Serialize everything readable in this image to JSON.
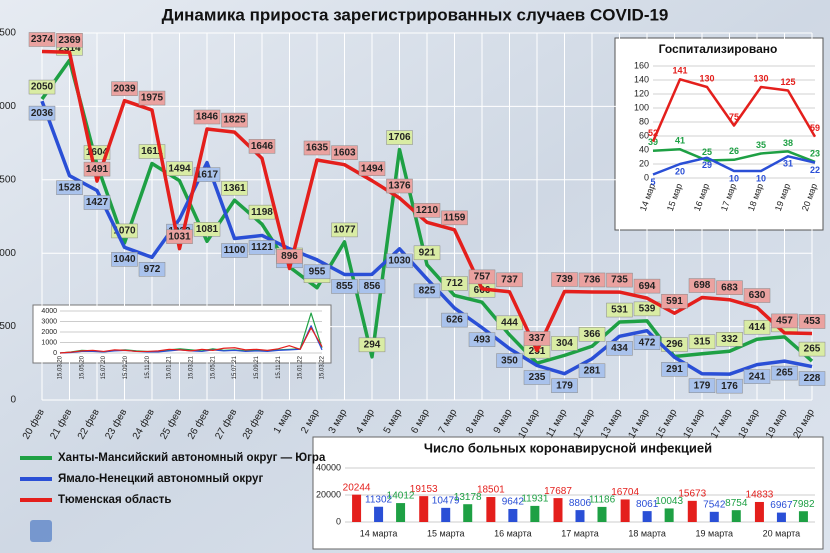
{
  "chart_data": [
    {
      "type": "line",
      "title": "Динамика прироста зарегистрированных случаев COVID-19",
      "categories": [
        "20 фев",
        "21 фев",
        "22 фев",
        "23 фев",
        "24 фев",
        "25 фев",
        "26 фев",
        "27 фев",
        "28 фев",
        "1 мар",
        "2 мар",
        "3 мар",
        "4 мар",
        "5 мар",
        "6 мар",
        "7 мар",
        "8 мар",
        "9 мар",
        "10 мар",
        "11 мар",
        "12 мар",
        "13 мар",
        "14 мар",
        "15 мар",
        "16 мар",
        "17 мар",
        "18 мар",
        "19 мар",
        "20 мар"
      ],
      "series": [
        {
          "name": "Ханты-Мансийский автономный округ — Югра",
          "color": "#1ea044",
          "values": [
            2050,
            2314,
            1604,
            1070,
            1611,
            1494,
            1081,
            1361,
            1198,
            906,
            765,
            1077,
            294,
            1706,
            921,
            712,
            666,
            444,
            251,
            304,
            366,
            531,
            539,
            296,
            315,
            332,
            414,
            430,
            265
          ]
        },
        {
          "name": "Ямало-Ненецкий автономный округ",
          "color": "#2a4fd6",
          "values": [
            2036,
            1528,
            1427,
            1040,
            972,
            1232,
            1617,
            1100,
            1121,
            1030,
            955,
            855,
            856,
            1030,
            825,
            626,
            493,
            350,
            235,
            179,
            281,
            434,
            472,
            291,
            179,
            176,
            241,
            265,
            228
          ]
        },
        {
          "name": "Тюменская область",
          "color": "#e41f1c",
          "values": [
            2374,
            2369,
            1491,
            2039,
            1975,
            1031,
            1846,
            1825,
            1646,
            896,
            1635,
            1603,
            1494,
            1376,
            1210,
            1159,
            757,
            737,
            337,
            739,
            736,
            735,
            694,
            591,
            698,
            683,
            630,
            457,
            453
          ]
        }
      ],
      "ylim": [
        0,
        2500
      ],
      "yticks": [
        0,
        500,
        1000,
        1500,
        2000,
        2500
      ],
      "grid": true,
      "legend": "bottom-left"
    },
    {
      "type": "line",
      "title": "Госпитализировано",
      "categories": [
        "14 мар",
        "15 мар",
        "16 мар",
        "17 мар",
        "18 мар",
        "19 мар",
        "20 мар"
      ],
      "series": [
        {
          "color": "#1ea044",
          "values": [
            39,
            41,
            25,
            26,
            35,
            38,
            23
          ]
        },
        {
          "color": "#2a4fd6",
          "values": [
            5,
            20,
            29,
            10,
            10,
            31,
            22
          ]
        },
        {
          "color": "#e41f1c",
          "values": [
            52,
            141,
            130,
            75,
            130,
            125,
            59
          ]
        }
      ],
      "ylim": [
        0,
        160
      ],
      "yticks": [
        0,
        20,
        40,
        60,
        80,
        100,
        120,
        140,
        160
      ],
      "grid": true
    },
    {
      "type": "line",
      "categories": [
        "15.03.20",
        null,
        "15.05.20",
        null,
        "15.07.20",
        null,
        "15.09.20",
        null,
        "15.11.20",
        null,
        "15.01.21",
        null,
        "15.03.21",
        null,
        "15.05.21",
        null,
        "15.07.21",
        null,
        "15.09.21",
        null,
        "15.11.21",
        null,
        "15.01.22",
        null,
        "15.03.22"
      ],
      "series": [
        {
          "color": "#1ea044",
          "values": [
            0,
            100,
            250,
            200,
            100,
            250,
            300,
            200,
            150,
            150,
            300,
            400,
            300,
            200,
            400,
            250,
            300,
            200,
            250,
            200,
            300,
            350,
            400,
            3800,
            500
          ]
        },
        {
          "color": "#2a4fd6",
          "values": [
            0,
            50,
            150,
            150,
            100,
            200,
            250,
            150,
            100,
            100,
            200,
            300,
            200,
            150,
            300,
            200,
            250,
            150,
            200,
            150,
            250,
            300,
            350,
            2600,
            300
          ]
        },
        {
          "color": "#e41f1c",
          "values": [
            0,
            80,
            200,
            250,
            150,
            300,
            250,
            150,
            150,
            200,
            350,
            300,
            200,
            350,
            250,
            450,
            500,
            300,
            350,
            250,
            400,
            700,
            350,
            2400,
            600
          ]
        }
      ],
      "ylim": [
        0,
        4000
      ],
      "yticks": [
        0,
        1000,
        2000,
        3000,
        4000
      ],
      "grid": true
    },
    {
      "type": "bar",
      "title": "Число больных коронавирусной  инфекцией",
      "categories": [
        "14 марта",
        "15 марта",
        "16 марта",
        "17 марта",
        "18 марта",
        "19 марта",
        "20 марта"
      ],
      "series": [
        {
          "color": "#e41f1c",
          "values": [
            20244,
            19153,
            18501,
            17687,
            16704,
            15673,
            14833
          ]
        },
        {
          "color": "#2a4fd6",
          "values": [
            11302,
            10479,
            9642,
            8806,
            8061,
            7542,
            6967
          ]
        },
        {
          "color": "#1ea044",
          "values": [
            14012,
            13178,
            11931,
            11186,
            10043,
            8754,
            7982
          ]
        }
      ],
      "ylim": [
        0,
        40000
      ],
      "yticks": [
        0,
        20000,
        40000
      ],
      "grid": true
    }
  ]
}
